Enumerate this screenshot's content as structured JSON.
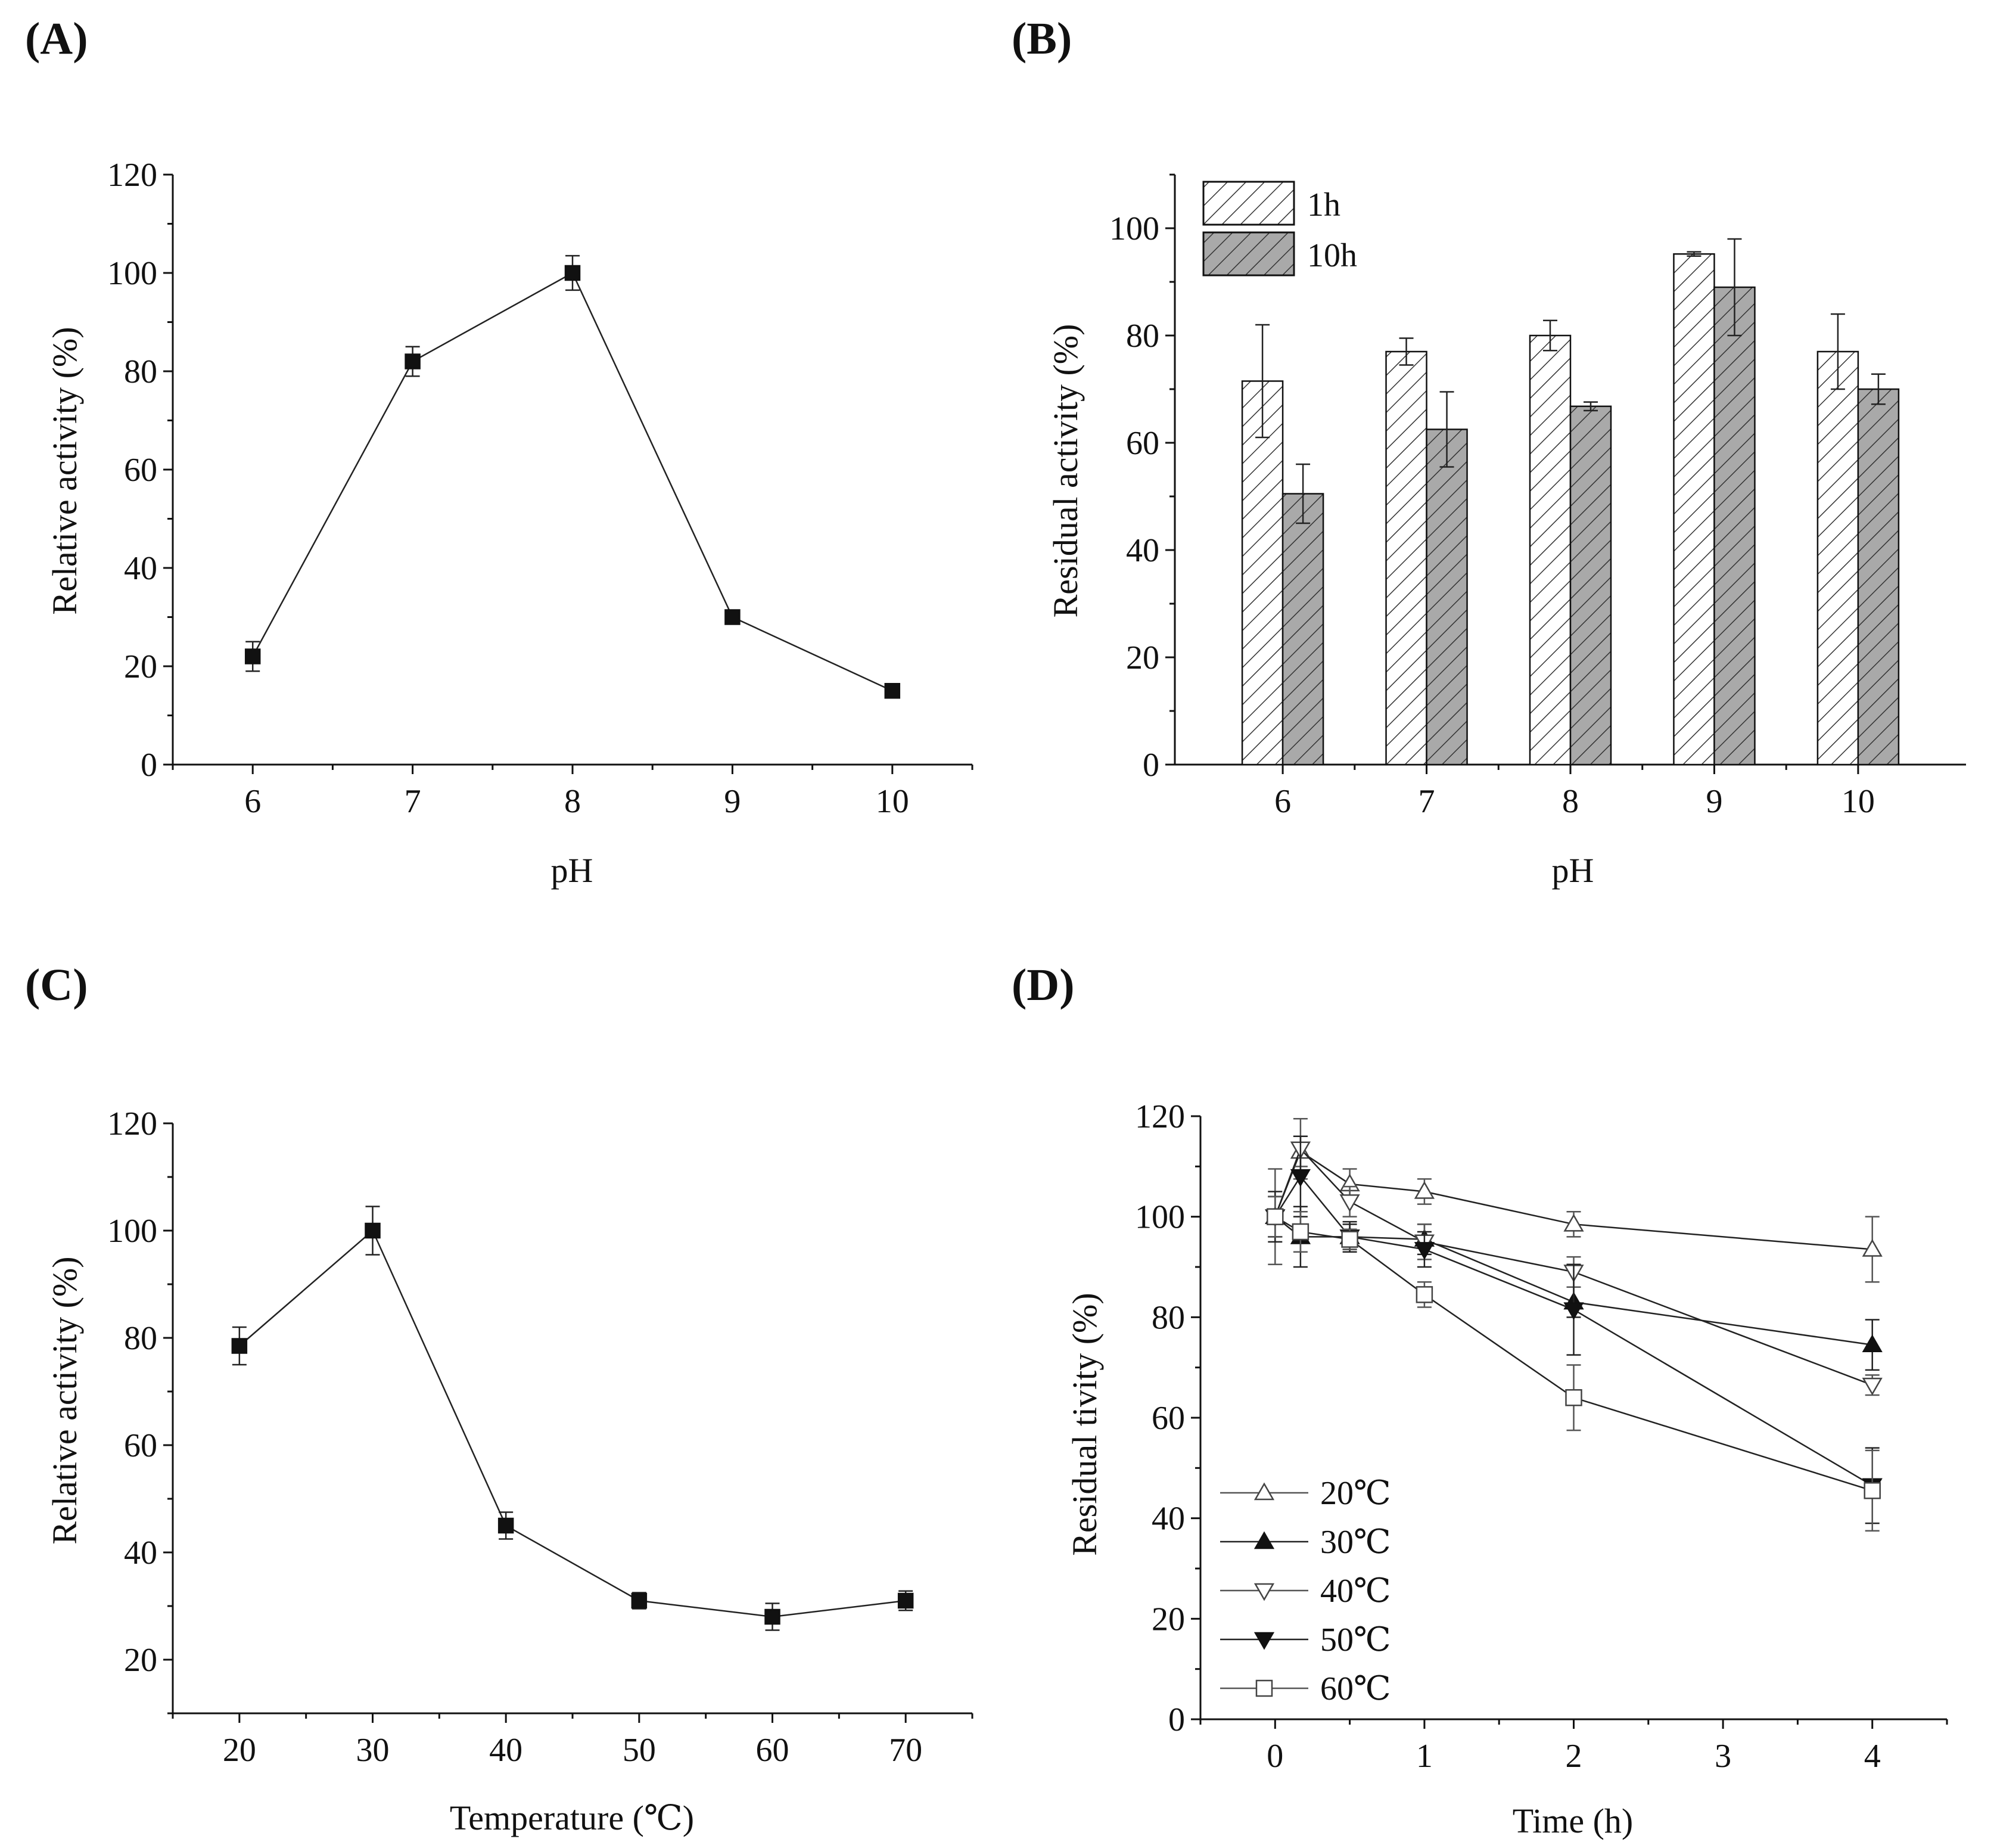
{
  "chart_data": [
    {
      "panel": "(A)",
      "type": "line",
      "xlabel": "pH",
      "ylabel": "Relative activity (%)",
      "xlim": [
        5.5,
        10.5
      ],
      "ylim": [
        0,
        120
      ],
      "xticks": [
        6,
        7,
        8,
        9,
        10
      ],
      "yticks": [
        0,
        20,
        40,
        60,
        80,
        100,
        120
      ],
      "series": [
        {
          "name": "activity",
          "marker": "square-filled",
          "x": [
            6,
            7,
            8,
            9,
            10
          ],
          "y": [
            22,
            82,
            100,
            30,
            15
          ],
          "err": [
            3,
            3,
            3.5,
            0.8,
            0.8
          ]
        }
      ]
    },
    {
      "panel": "(B)",
      "type": "bar",
      "xlabel": "pH",
      "ylabel": "Residual activity (%)",
      "categories": [
        "6",
        "7",
        "8",
        "9",
        "10"
      ],
      "ylim": [
        0,
        110
      ],
      "yticks": [
        0,
        20,
        40,
        60,
        80,
        100
      ],
      "legend_position": "top-left",
      "series": [
        {
          "name": "1h",
          "fill": "hatched-white",
          "values": [
            71.5,
            77,
            80,
            95.2,
            77
          ],
          "err": [
            10.5,
            2.5,
            2.8,
            0.4,
            7
          ]
        },
        {
          "name": "10h",
          "fill": "hatched-gray",
          "values": [
            50.5,
            62.5,
            66.8,
            89,
            70
          ],
          "err": [
            5.5,
            7,
            0.8,
            9,
            2.8
          ]
        }
      ]
    },
    {
      "panel": "(C)",
      "type": "line",
      "xlabel": "Temperature (℃)",
      "ylabel": "Relative activity (%)",
      "xlim": [
        15,
        75
      ],
      "ylim": [
        10,
        120
      ],
      "xticks": [
        20,
        30,
        40,
        50,
        60,
        70
      ],
      "yticks": [
        20,
        40,
        60,
        80,
        100,
        120
      ],
      "series": [
        {
          "name": "activity",
          "marker": "square-filled",
          "x": [
            20,
            30,
            40,
            50,
            60,
            70
          ],
          "y": [
            78.5,
            100,
            45,
            31,
            28,
            31
          ],
          "err": [
            3.5,
            4.5,
            2.5,
            1.5,
            2.5,
            1.8
          ]
        }
      ]
    },
    {
      "panel": "(D)",
      "type": "line",
      "xlabel": "Time (h)",
      "ylabel": "Residual tivity (%)",
      "xlim": [
        -0.5,
        4.5
      ],
      "ylim": [
        0,
        120
      ],
      "xticks": [
        0,
        1,
        2,
        3,
        4
      ],
      "yticks": [
        0,
        20,
        40,
        60,
        80,
        100,
        120
      ],
      "legend_position": "bottom-left",
      "series": [
        {
          "name": "20℃",
          "marker": "triangle-up-open",
          "x": [
            0,
            0.17,
            0.5,
            1,
            2,
            4
          ],
          "y": [
            100,
            113,
            106.5,
            105,
            98.5,
            93.5
          ],
          "err": [
            4,
            3,
            3,
            2.5,
            2.5,
            6.5
          ]
        },
        {
          "name": "30℃",
          "marker": "triangle-up-filled",
          "x": [
            0,
            0.17,
            0.5,
            1,
            2,
            4
          ],
          "y": [
            100,
            96,
            96,
            95.5,
            83,
            74.5
          ],
          "err": [
            4,
            6,
            2.5,
            3,
            3,
            5
          ]
        },
        {
          "name": "40℃",
          "marker": "triangle-down-open",
          "x": [
            0,
            0.17,
            0.5,
            1,
            2,
            4
          ],
          "y": [
            100,
            113.5,
            103,
            95,
            89,
            66.5
          ],
          "err": [
            9.5,
            6,
            3,
            3.5,
            3,
            2
          ]
        },
        {
          "name": "50℃",
          "marker": "triangle-down-filled",
          "x": [
            0,
            0.17,
            0.5,
            1,
            2,
            4
          ],
          "y": [
            100,
            108,
            96,
            93.5,
            81.5,
            46.5
          ],
          "err": [
            5,
            8,
            3,
            3.5,
            9,
            7.5
          ]
        },
        {
          "name": "60℃",
          "marker": "square-open",
          "x": [
            0,
            0.17,
            0.5,
            1,
            2,
            4
          ],
          "y": [
            100,
            97,
            95.5,
            84.5,
            64,
            45.5
          ],
          "err": [
            4,
            4,
            2,
            2.5,
            6.5,
            8
          ]
        }
      ]
    }
  ]
}
